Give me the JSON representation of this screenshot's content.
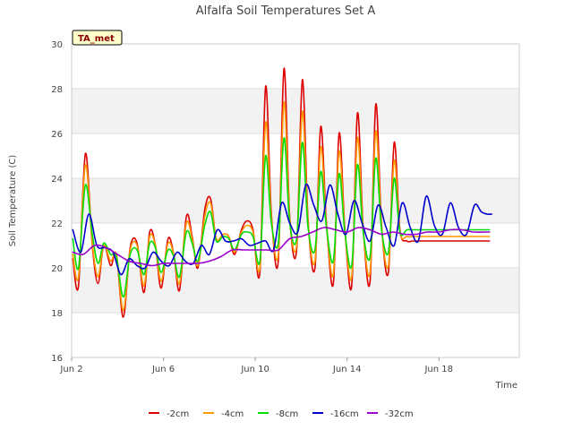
{
  "chart_data": {
    "type": "line",
    "title": "Alfalfa Soil Temperatures Set A",
    "xlabel": "Time",
    "ylabel": "Soil Temperature (C)",
    "ylim": [
      16,
      30
    ],
    "xlim_days": [
      0,
      19.5
    ],
    "x_start_label": "Jun 2",
    "x_ticks": [
      {
        "day": 0,
        "label": "Jun 2"
      },
      {
        "day": 4,
        "label": "Jun 6"
      },
      {
        "day": 8,
        "label": "Jun 10"
      },
      {
        "day": 12,
        "label": "Jun 14"
      },
      {
        "day": 16,
        "label": "Jun 18"
      }
    ],
    "y_ticks": [
      16,
      18,
      20,
      22,
      24,
      26,
      28,
      30
    ],
    "grid": true,
    "banded_background": true,
    "legend_position": "bottom",
    "annotation": "TA_met",
    "series": [
      {
        "name": "-2cm",
        "color": "#dd0000",
        "x": [
          0.05,
          0.3,
          0.6,
          0.9,
          1.15,
          1.4,
          1.7,
          1.95,
          2.25,
          2.55,
          2.85,
          3.15,
          3.4,
          3.65,
          3.9,
          4.2,
          4.45,
          4.7,
          5.0,
          5.25,
          5.5,
          5.8,
          6.05,
          6.3,
          6.6,
          6.85,
          7.1,
          7.4,
          7.65,
          7.9,
          8.2,
          8.45,
          8.7,
          9.0,
          9.25,
          9.5,
          9.8,
          10.05,
          10.3,
          10.6,
          10.85,
          11.1,
          11.4,
          11.65,
          11.9,
          12.2,
          12.45,
          12.7,
          13.0,
          13.25,
          13.5,
          13.8,
          14.05,
          14.3,
          14.6,
          14.85,
          15.1,
          15.4,
          15.65,
          15.9,
          16.2,
          16.45,
          16.7,
          16.95,
          17.25,
          17.5,
          17.75,
          18.0,
          18.2
        ],
        "y": [
          20.4,
          19.2,
          25.1,
          21.0,
          19.3,
          21.0,
          20.1,
          20.6,
          17.8,
          20.9,
          21.1,
          18.9,
          21.6,
          21.0,
          19.1,
          21.3,
          20.6,
          19.0,
          22.3,
          21.4,
          20.0,
          22.6,
          23.1,
          21.3,
          21.5,
          21.4,
          20.6,
          21.7,
          22.1,
          21.7,
          19.8,
          28.1,
          22.4,
          20.3,
          28.9,
          22.3,
          20.8,
          28.4,
          22.1,
          20.0,
          26.3,
          22.0,
          19.3,
          26.0,
          21.8,
          19.2,
          26.9,
          21.8,
          19.4,
          27.3,
          21.9,
          19.8,
          25.6,
          21.7,
          21.2,
          21.2,
          21.2,
          21.2,
          21.2,
          21.2,
          21.2,
          21.2,
          21.2,
          21.2,
          21.2,
          21.2,
          21.2,
          21.2,
          21.2
        ]
      },
      {
        "name": "-4cm",
        "color": "#ff9900",
        "x": [
          0.05,
          0.3,
          0.6,
          0.9,
          1.15,
          1.4,
          1.7,
          1.95,
          2.25,
          2.55,
          2.85,
          3.15,
          3.4,
          3.65,
          3.9,
          4.2,
          4.45,
          4.7,
          5.0,
          5.25,
          5.5,
          5.8,
          6.05,
          6.3,
          6.6,
          6.85,
          7.1,
          7.4,
          7.65,
          7.9,
          8.2,
          8.45,
          8.7,
          9.0,
          9.25,
          9.5,
          9.8,
          10.05,
          10.3,
          10.6,
          10.85,
          11.1,
          11.4,
          11.65,
          11.9,
          12.2,
          12.45,
          12.7,
          13.0,
          13.25,
          13.5,
          13.8,
          14.05,
          14.3,
          14.6,
          14.85,
          15.1,
          15.4,
          15.65,
          15.9,
          16.2,
          16.45,
          16.7,
          16.95,
          17.25,
          17.5,
          17.75,
          18.0,
          18.2
        ],
        "y": [
          20.6,
          19.6,
          24.6,
          21.1,
          19.6,
          21.0,
          20.3,
          20.6,
          18.1,
          20.8,
          21.0,
          19.2,
          21.4,
          21.0,
          19.4,
          21.1,
          20.6,
          19.3,
          22.0,
          21.3,
          20.1,
          22.3,
          22.9,
          21.3,
          21.5,
          21.4,
          20.7,
          21.6,
          21.9,
          21.6,
          20.0,
          26.5,
          22.2,
          20.6,
          27.4,
          22.2,
          21.0,
          27.0,
          22.0,
          20.3,
          25.4,
          21.9,
          19.7,
          25.2,
          21.7,
          19.6,
          25.8,
          21.7,
          19.8,
          26.1,
          21.8,
          20.1,
          24.8,
          21.6,
          21.4,
          21.4,
          21.4,
          21.4,
          21.4,
          21.4,
          21.4,
          21.4,
          21.4,
          21.4,
          21.4,
          21.4,
          21.4,
          21.4,
          21.4
        ]
      },
      {
        "name": "-8cm",
        "color": "#00dd00",
        "x": [
          0.05,
          0.3,
          0.6,
          0.9,
          1.15,
          1.4,
          1.7,
          1.95,
          2.25,
          2.55,
          2.85,
          3.15,
          3.4,
          3.65,
          3.9,
          4.2,
          4.45,
          4.7,
          5.0,
          5.25,
          5.5,
          5.8,
          6.05,
          6.3,
          6.6,
          6.85,
          7.1,
          7.4,
          7.65,
          7.9,
          8.2,
          8.45,
          8.7,
          9.0,
          9.25,
          9.5,
          9.8,
          10.05,
          10.3,
          10.6,
          10.85,
          11.1,
          11.4,
          11.65,
          11.9,
          12.2,
          12.45,
          12.7,
          13.0,
          13.25,
          13.5,
          13.8,
          14.05,
          14.3,
          14.6,
          14.85,
          15.1,
          15.4,
          15.65,
          15.9,
          16.2,
          16.45,
          16.7,
          16.95,
          17.25,
          17.5,
          17.75,
          18.0,
          18.2
        ],
        "y": [
          21.3,
          20.0,
          23.7,
          21.5,
          20.2,
          21.1,
          20.6,
          20.5,
          18.7,
          20.6,
          20.8,
          19.7,
          21.1,
          20.9,
          19.8,
          20.8,
          20.5,
          19.6,
          21.6,
          21.1,
          20.3,
          21.9,
          22.5,
          21.2,
          21.4,
          21.3,
          20.8,
          21.5,
          21.6,
          21.4,
          20.3,
          25.0,
          22.0,
          21.1,
          25.8,
          22.0,
          21.3,
          25.6,
          21.8,
          20.8,
          24.3,
          21.8,
          20.3,
          24.2,
          21.6,
          20.1,
          24.6,
          21.6,
          20.5,
          24.9,
          21.7,
          20.7,
          24.0,
          21.6,
          21.7,
          21.7,
          21.7,
          21.7,
          21.7,
          21.7,
          21.7,
          21.7,
          21.7,
          21.7,
          21.7,
          21.7,
          21.7,
          21.7,
          21.7
        ]
      },
      {
        "name": "-16cm",
        "color": "#0000cc",
        "x": [
          0.05,
          0.4,
          0.75,
          1.1,
          1.45,
          1.8,
          2.15,
          2.5,
          2.85,
          3.2,
          3.55,
          3.9,
          4.25,
          4.6,
          4.95,
          5.3,
          5.65,
          6.0,
          6.35,
          6.7,
          7.05,
          7.4,
          7.75,
          8.1,
          8.45,
          8.8,
          9.15,
          9.5,
          9.85,
          10.2,
          10.55,
          10.9,
          11.25,
          11.6,
          11.95,
          12.3,
          12.65,
          13.0,
          13.35,
          13.7,
          14.05,
          14.4,
          14.75,
          15.1,
          15.45,
          15.8,
          16.15,
          16.5,
          16.85,
          17.2,
          17.55,
          17.85,
          18.1,
          18.3
        ],
        "y": [
          21.7,
          20.7,
          22.4,
          21.0,
          20.9,
          20.7,
          19.7,
          20.4,
          20.1,
          20.0,
          20.7,
          20.3,
          20.1,
          20.7,
          20.3,
          20.2,
          21.0,
          20.6,
          21.7,
          21.2,
          21.2,
          21.3,
          21.0,
          21.1,
          21.2,
          20.8,
          22.9,
          22.0,
          21.6,
          23.7,
          22.8,
          22.1,
          23.7,
          22.4,
          21.5,
          23.0,
          22.0,
          21.2,
          22.8,
          21.8,
          21.0,
          22.9,
          21.8,
          21.2,
          23.2,
          21.9,
          21.5,
          22.9,
          21.8,
          21.5,
          22.8,
          22.5,
          22.4,
          22.4
        ]
      },
      {
        "name": "-32cm",
        "color": "#9900cc",
        "x": [
          0.05,
          0.5,
          1.0,
          1.5,
          2.0,
          2.5,
          3.0,
          3.5,
          4.0,
          4.5,
          5.0,
          5.5,
          6.0,
          6.5,
          7.0,
          7.5,
          8.0,
          8.5,
          9.0,
          9.5,
          10.0,
          10.5,
          11.0,
          11.5,
          12.0,
          12.5,
          13.0,
          13.5,
          14.0,
          14.5,
          15.0,
          15.5,
          16.0,
          16.5,
          17.0,
          17.5,
          18.0,
          18.2
        ],
        "y": [
          20.7,
          20.6,
          21.0,
          20.9,
          20.6,
          20.3,
          20.2,
          20.1,
          20.2,
          20.2,
          20.2,
          20.2,
          20.3,
          20.5,
          20.8,
          20.8,
          20.8,
          20.8,
          20.8,
          21.3,
          21.4,
          21.6,
          21.8,
          21.7,
          21.6,
          21.8,
          21.7,
          21.5,
          21.6,
          21.5,
          21.5,
          21.6,
          21.6,
          21.7,
          21.7,
          21.6,
          21.6,
          21.6
        ]
      }
    ]
  }
}
